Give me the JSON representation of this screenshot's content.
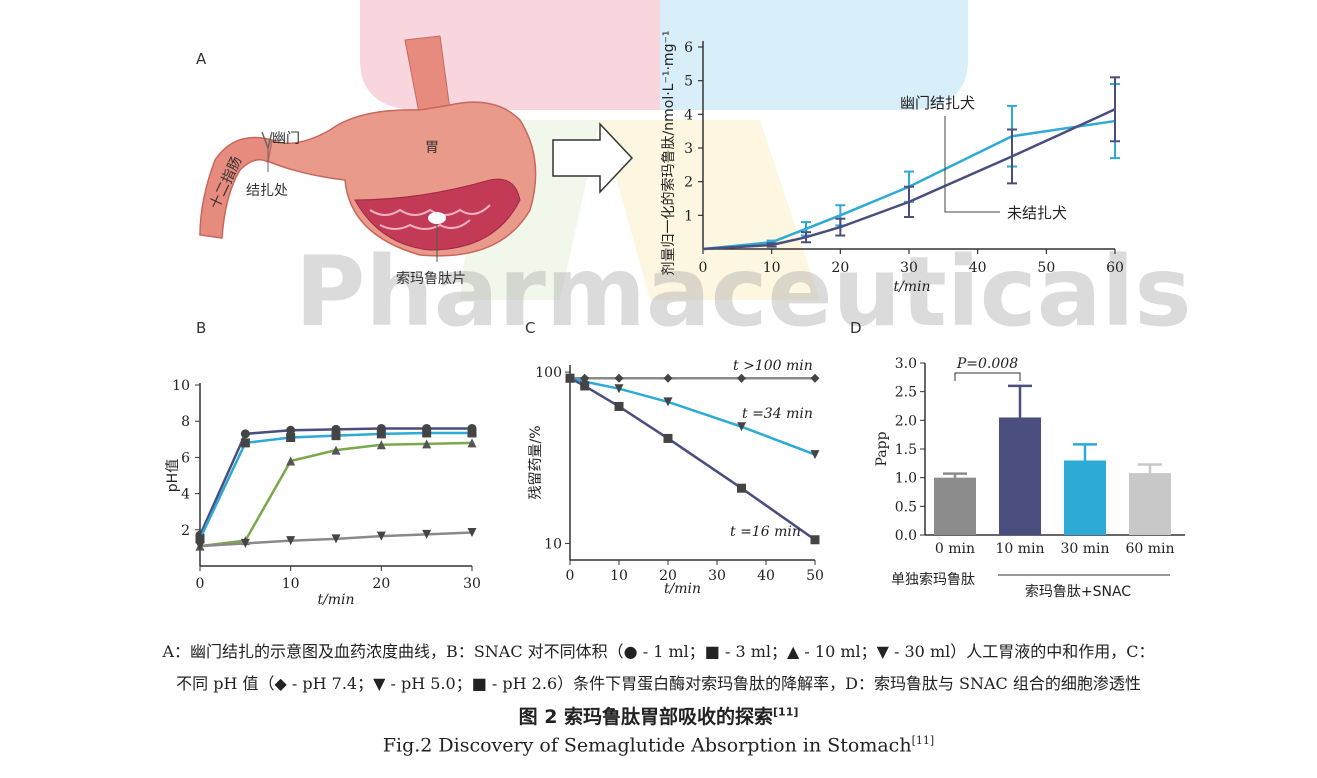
{
  "watermark": "Pharmaceuticals",
  "panelA": {
    "letter": "A",
    "labels": {
      "pylorus": "幽门",
      "stomach": "胃",
      "duodenum": "十二指肠",
      "ligation": "结扎处",
      "tablet": "索玛鲁肽片"
    }
  },
  "chart_data": [
    {
      "panel": "A",
      "type": "line",
      "ylabel": "剂量归一化的索玛鲁肽/nmol·L⁻¹·mg⁻¹",
      "xlabel": "t/min",
      "xlim": [
        0,
        60
      ],
      "ylim": [
        0,
        6
      ],
      "xticks": [
        0,
        10,
        20,
        30,
        40,
        50,
        60
      ],
      "yticks": [
        1,
        2,
        3,
        4,
        5,
        6
      ],
      "grid": false,
      "series": [
        {
          "name": "幽门结扎犬",
          "color": "#2eaad6",
          "x": [
            0,
            10,
            15,
            20,
            30,
            45,
            60
          ],
          "y": [
            0,
            0.2,
            0.6,
            1.0,
            1.85,
            3.35,
            3.8
          ],
          "err": [
            0,
            0.05,
            0.2,
            0.3,
            0.45,
            0.9,
            1.1
          ]
        },
        {
          "name": "未结扎犬",
          "color": "#4a4e7e",
          "x": [
            0,
            10,
            15,
            20,
            30,
            45,
            60
          ],
          "y": [
            0,
            0.12,
            0.35,
            0.65,
            1.4,
            2.75,
            4.15
          ],
          "err": [
            0,
            0.05,
            0.15,
            0.25,
            0.45,
            0.8,
            0.95
          ]
        }
      ]
    },
    {
      "panel": "B",
      "type": "line",
      "ylabel": "pH值",
      "xlabel": "t/min",
      "xlim": [
        0,
        30
      ],
      "ylim": [
        0,
        10
      ],
      "xticks": [
        0,
        10,
        20,
        30
      ],
      "yticks": [
        2,
        4,
        6,
        8,
        10
      ],
      "series": [
        {
          "marker": "circle",
          "color": "#4a4e7e",
          "x": [
            0,
            5,
            10,
            15,
            20,
            25,
            30
          ],
          "y": [
            1.7,
            7.3,
            7.5,
            7.55,
            7.6,
            7.6,
            7.6
          ]
        },
        {
          "marker": "square",
          "color": "#2eaad6",
          "x": [
            0,
            5,
            10,
            15,
            20,
            25,
            30
          ],
          "y": [
            1.5,
            6.8,
            7.1,
            7.2,
            7.3,
            7.35,
            7.35
          ]
        },
        {
          "marker": "triangle-up",
          "color": "#7aa84a",
          "x": [
            0,
            5,
            10,
            15,
            20,
            25,
            30
          ],
          "y": [
            1.1,
            1.4,
            5.8,
            6.4,
            6.7,
            6.75,
            6.8
          ]
        },
        {
          "marker": "triangle-down",
          "color": "#8a8a8a",
          "x": [
            0,
            5,
            10,
            15,
            20,
            25,
            30
          ],
          "y": [
            1.1,
            1.25,
            1.4,
            1.5,
            1.65,
            1.75,
            1.85
          ]
        }
      ]
    },
    {
      "panel": "C",
      "type": "line",
      "ylabel": "残留药量/%",
      "xlabel": "t/min",
      "xlim": [
        0,
        50
      ],
      "ylim": [
        8,
        110
      ],
      "yscale": "log",
      "xticks": [
        0,
        10,
        20,
        30,
        40,
        50
      ],
      "yticks": [
        10,
        100
      ],
      "series": [
        {
          "marker": "diamond",
          "color": "#8a8a8a",
          "x": [
            0,
            3,
            10,
            20,
            35,
            50
          ],
          "y": [
            92,
            92,
            92,
            92,
            92,
            92
          ]
        },
        {
          "marker": "triangle-down",
          "color": "#2eaad6",
          "x": [
            0,
            3,
            10,
            20,
            35,
            50
          ],
          "y": [
            92,
            88,
            80,
            67,
            48,
            33
          ]
        },
        {
          "marker": "square",
          "color": "#4a4e7e",
          "x": [
            0,
            3,
            10,
            20,
            35,
            50
          ],
          "y": [
            92,
            83,
            63,
            41,
            21,
            10.5
          ]
        }
      ],
      "annotations": [
        "t >100 min",
        "t =34 min",
        "t =16 min"
      ]
    },
    {
      "panel": "D",
      "type": "bar",
      "ylabel": "Papp",
      "categories": [
        "0 min",
        "10 min",
        "30 min",
        "60 min"
      ],
      "values": [
        1.0,
        2.05,
        1.3,
        1.08
      ],
      "errors": [
        0.07,
        0.55,
        0.28,
        0.15
      ],
      "colors": [
        "#8c8c8c",
        "#4a4e7e",
        "#2eaad6",
        "#c8c8c8"
      ],
      "ylim": [
        0,
        3.0
      ],
      "yticks": [
        0.0,
        0.5,
        1.0,
        1.5,
        2.0,
        2.5,
        3.0
      ],
      "significance": "P=0.008",
      "groups": [
        "单独索玛鲁肽",
        "索玛鲁肽+SNAC"
      ]
    }
  ],
  "caption": {
    "line1": "A：幽门结扎的示意图及血药浓度曲线，B：SNAC 对不同体积（● - 1 ml；■ - 3 ml；▲ - 10 ml；▼ - 30 ml）人工胃液的中和作用，C：",
    "line2": "不同 pH 值（◆ - pH 7.4；▼ - pH 5.0；■ - pH 2.6）条件下胃蛋白酶对索玛鲁肽的降解率，D：索玛鲁肽与 SNAC 组合的细胞渗透性",
    "title_cn": "图 2  索玛鲁肽胃部吸收的探索",
    "title_en": "Fig.2   Discovery of Semaglutide Absorption in Stomach",
    "ref": "[11]"
  },
  "colors": {
    "cyan": "#2eaad6",
    "navy": "#4a4e7e",
    "green": "#7aa84a",
    "gray": "#8a8a8a"
  }
}
